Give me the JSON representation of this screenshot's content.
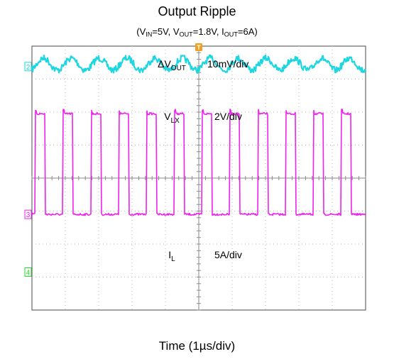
{
  "chart_data": {
    "type": "line",
    "title": "Output Ripple",
    "subtitle": {
      "parts": [
        {
          "t": "(V"
        },
        {
          "t": "IN",
          "sub": true
        },
        {
          "t": "=5V, V"
        },
        {
          "t": "OUT",
          "sub": true
        },
        {
          "t": "=1.8V, I"
        },
        {
          "t": "OUT",
          "sub": true
        },
        {
          "t": "=6A)"
        }
      ]
    },
    "xlabel": "Time (1µs/div)",
    "time_per_div_us": 1,
    "grid": true,
    "grid_divisions": {
      "x": 10,
      "y": 8
    },
    "switching_cycles_on_screen": 12,
    "trigger_marker": "T",
    "series": [
      {
        "name_parts": [
          {
            "t": "ΔV"
          },
          {
            "t": "OUT",
            "sub": true
          }
        ],
        "scale": "10mV/div",
        "channel_marker": "2",
        "color": "#1ed6e0",
        "waveform": "ripple",
        "baseline_div": 0.8,
        "amplitude_div": 0.18
      },
      {
        "name_parts": [
          {
            "t": "V"
          },
          {
            "t": "LX",
            "sub": true
          }
        ],
        "scale": "2V/div",
        "channel_marker": "3",
        "color": "#ee22ee",
        "waveform": "square",
        "high_div": 2.05,
        "low_div": 5.1,
        "duty_cycle": 0.36
      },
      {
        "name_parts": [
          {
            "t": "I"
          },
          {
            "t": "L",
            "sub": true
          }
        ],
        "scale": "5A/div",
        "channel_marker": "",
        "color": "#22dd22",
        "waveform": "triangle",
        "center_div": 5.65,
        "peak_to_peak_div": 0.3
      }
    ],
    "ground_markers": [
      {
        "label": "2",
        "color": "#1ed6e0",
        "level_div": 0.62
      },
      {
        "label": "3",
        "color": "#ee22ee",
        "level_div": 5.1
      },
      {
        "label": "4",
        "color": "#22dd22",
        "level_div": 6.85
      }
    ]
  }
}
